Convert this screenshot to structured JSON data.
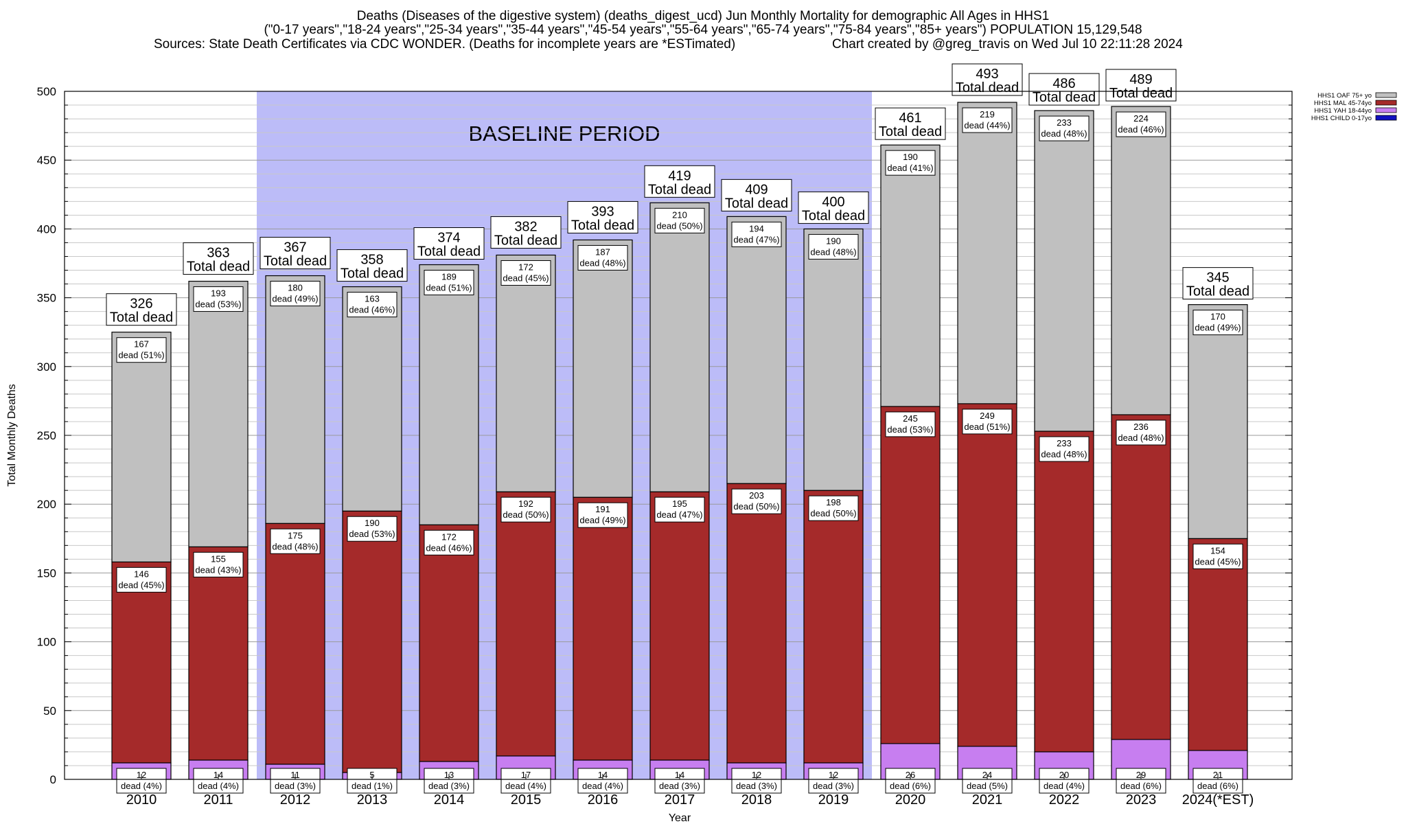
{
  "header": {
    "title_line1": "Deaths (Diseases of the digestive system) (deaths_digest_ucd) Jun Monthly Mortality for demographic All Ages in HHS1",
    "title_line2": "(\"0-17 years\",\"18-24 years\",\"25-34 years\",\"35-44 years\",\"45-54 years\",\"55-64 years\",\"65-74 years\",\"75-84 years\",\"85+ years\") POPULATION 15,129,548",
    "sources": "Sources: State Death Certificates via CDC WONDER. (Deaths for incomplete years are *ESTimated)",
    "credit": "Chart created by @greg_travis on Wed Jul 10 22:11:28 2024"
  },
  "chart_data": {
    "type": "bar",
    "stacked": true,
    "xlabel": "Year",
    "ylabel": "Total Monthly Deaths",
    "ylim": [
      0,
      500
    ],
    "yticks": [
      0,
      50,
      100,
      150,
      200,
      250,
      300,
      350,
      400,
      450,
      500
    ],
    "grid": true,
    "legend_position": "top-right",
    "categories": [
      "2010",
      "2011",
      "2012",
      "2013",
      "2014",
      "2015",
      "2016",
      "2017",
      "2018",
      "2019",
      "2020",
      "2021",
      "2022",
      "2023",
      "2024(*EST)"
    ],
    "baseline": {
      "label": "BASELINE PERIOD",
      "from": "2012",
      "to": "2019",
      "color": "#bcbcf8"
    },
    "total_label": "Total dead",
    "totals": [
      326,
      363,
      367,
      358,
      374,
      382,
      393,
      419,
      409,
      400,
      461,
      493,
      486,
      489,
      345
    ],
    "series": [
      {
        "name": "HHS1 CHILD 0-17yo",
        "color": "#1010c0",
        "values": [
          0,
          0,
          0,
          0,
          0,
          0,
          0,
          0,
          0,
          0,
          0,
          0,
          0,
          0,
          0
        ]
      },
      {
        "name": "HHS1 YAH 18-44yo",
        "color": "#c77ef0",
        "values": [
          12,
          14,
          11,
          5,
          13,
          17,
          14,
          14,
          12,
          12,
          26,
          24,
          20,
          29,
          21
        ],
        "labels": [
          "12\ndead (4%)",
          "14\ndead (4%)",
          "11\ndead (3%)",
          "5\ndead (1%)",
          "13\ndead (3%)",
          "17\ndead (4%)",
          "14\ndead (4%)",
          "14\ndead (3%)",
          "12\ndead (3%)",
          "12\ndead (3%)",
          "26\ndead (6%)",
          "24\ndead (5%)",
          "20\ndead (4%)",
          "29\ndead (6%)",
          "21\ndead (6%)"
        ]
      },
      {
        "name": "HHS1 MAL 45-74yo",
        "color": "#a52a2a",
        "values": [
          146,
          155,
          175,
          190,
          172,
          192,
          191,
          195,
          203,
          198,
          245,
          249,
          233,
          236,
          154
        ],
        "labels": [
          "146\ndead (45%)",
          "155\ndead (43%)",
          "175\ndead (48%)",
          "190\ndead (53%)",
          "172\ndead (46%)",
          "192\ndead (50%)",
          "191\ndead (49%)",
          "195\ndead (47%)",
          "203\ndead (50%)",
          "198\ndead (50%)",
          "245\ndead (53%)",
          "249\ndead (51%)",
          "233\ndead (48%)",
          "236\ndead (48%)",
          "154\ndead (45%)"
        ]
      },
      {
        "name": "HHS1 OAF 75+ yo",
        "color": "#c0c0c0",
        "values": [
          167,
          193,
          180,
          163,
          189,
          172,
          187,
          210,
          194,
          190,
          190,
          219,
          233,
          224,
          170
        ],
        "labels": [
          "167\ndead (51%)",
          "193\ndead (53%)",
          "180\ndead (49%)",
          "163\ndead (46%)",
          "189\ndead (51%)",
          "172\ndead (45%)",
          "187\ndead (48%)",
          "210\ndead (50%)",
          "194\ndead (47%)",
          "190\ndead (48%)",
          "190\ndead (41%)",
          "219\ndead (44%)",
          "233\ndead (48%)",
          "224\ndead (46%)",
          "170\ndead (49%)"
        ]
      }
    ]
  }
}
